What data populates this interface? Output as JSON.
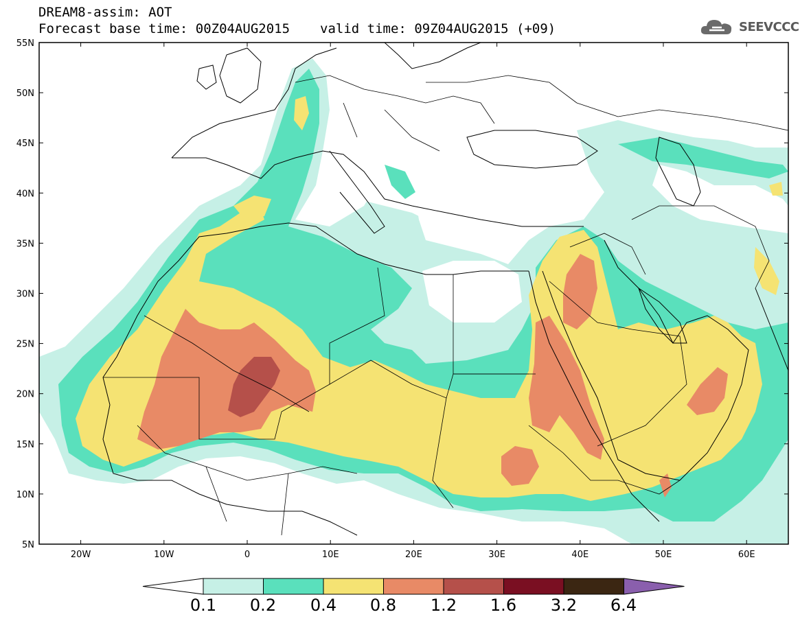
{
  "header": {
    "title": "DREAM8-assim: AOT",
    "base_time": "Forecast base time: 00Z04AUG2015",
    "valid_time": "valid time: 09Z04AUG2015 (+09)"
  },
  "logo": {
    "text": "SEEVCCC",
    "icon": "cloud-icon"
  },
  "map": {
    "lon_range": [
      -25,
      65
    ],
    "lat_range": [
      5,
      55
    ],
    "lat_ticks": [
      "55N",
      "50N",
      "45N",
      "40N",
      "35N",
      "30N",
      "25N",
      "20N",
      "15N",
      "10N",
      "5N"
    ],
    "lon_ticks": [
      "20W",
      "10W",
      "0",
      "10E",
      "20E",
      "30E",
      "40E",
      "50E",
      "60E"
    ],
    "field": "AOT"
  },
  "colorbar": {
    "boundaries": [
      "0.1",
      "0.2",
      "0.4",
      "0.8",
      "1.2",
      "1.6",
      "3.2",
      "6.4"
    ],
    "colors": [
      "#c6f0e6",
      "#5ae0bc",
      "#f5e373",
      "#e88a66",
      "#b5504a",
      "#7a0f22",
      "#3b2612",
      "#8a5fad"
    ],
    "under_color": "#ffffff"
  },
  "colors": {
    "aot_0.1": "#c6f0e6",
    "aot_0.2": "#5ae0bc",
    "aot_0.4": "#f5e373",
    "aot_0.8": "#e88a66",
    "aot_1.2": "#b5504a"
  }
}
